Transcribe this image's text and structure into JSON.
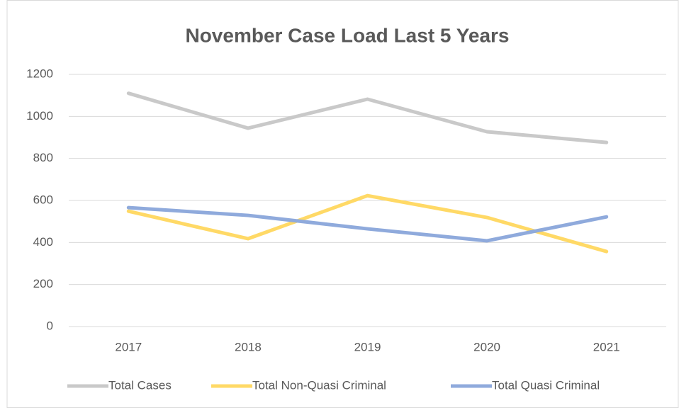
{
  "chart_data": {
    "type": "line",
    "title": "November Case Load Last 5 Years",
    "categories": [
      "2017",
      "2018",
      "2019",
      "2020",
      "2021"
    ],
    "series": [
      {
        "name": "Total Cases",
        "color": "#c9c9c9",
        "values": [
          1110,
          944,
          1082,
          927,
          876
        ]
      },
      {
        "name": "Total Non-Quasi Criminal",
        "color": "#ffd966",
        "values": [
          549,
          418,
          623,
          519,
          357
        ]
      },
      {
        "name": "Total Quasi Criminal",
        "color": "#8faadc",
        "values": [
          566,
          529,
          465,
          408,
          522
        ]
      }
    ],
    "ylim": [
      0,
      1200
    ],
    "yticks": [
      0,
      200,
      400,
      600,
      800,
      1000,
      1200
    ],
    "grid": true,
    "legend": "bottom"
  }
}
